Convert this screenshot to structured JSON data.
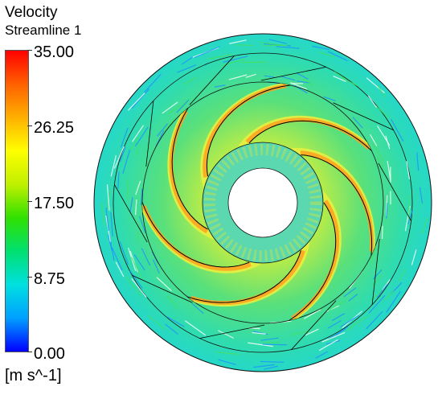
{
  "legend": {
    "title": "Velocity",
    "subtitle": "Streamline 1",
    "units": "[m s^-1]",
    "ticks": [
      "35.00",
      "26.25",
      "17.50",
      "8.75",
      "0.00"
    ],
    "tick_values": [
      35.0,
      26.25,
      17.5,
      8.75,
      0.0
    ],
    "range": [
      0.0,
      35.0
    ],
    "colormap": [
      "#0000ff",
      "#00a0ff",
      "#00e0e0",
      "#00e070",
      "#30e000",
      "#c0f000",
      "#ffff00",
      "#ffb000",
      "#ff6000",
      "#ff0000"
    ]
  },
  "plot": {
    "type": "impeller streamline velocity contour",
    "blade_count": 7,
    "colors": {
      "background": "#23dcc4",
      "green": "#44e060",
      "yellow": "#e8f040",
      "orange": "#ffa020",
      "blue": "#1e90ff",
      "outline": "#000000"
    }
  }
}
